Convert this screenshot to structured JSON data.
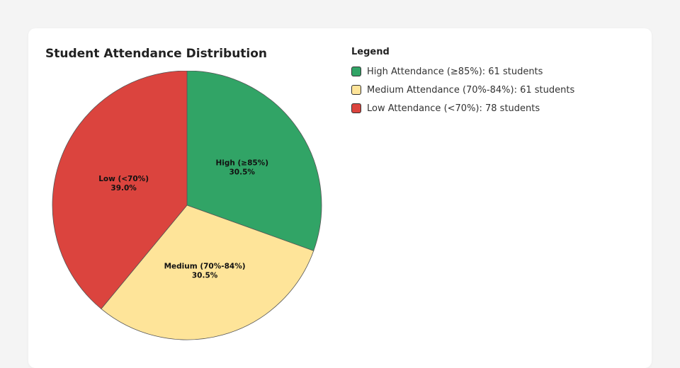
{
  "chart_data": {
    "type": "pie",
    "title": "Student Attendance Distribution",
    "slices": [
      {
        "label": "High (≥85%)",
        "percent_label": "30.5%",
        "value": 61,
        "color": "#31a466"
      },
      {
        "label": "Medium (70%-84%)",
        "percent_label": "30.5%",
        "value": 61,
        "color": "#fee499"
      },
      {
        "label": "Low (<70%)",
        "percent_label": "39.0%",
        "value": 78,
        "color": "#db443e"
      }
    ],
    "legend": {
      "title": "Legend",
      "placement": "right",
      "items": [
        {
          "text": "High Attendance (≥85%): 61 students",
          "color": "#31a466"
        },
        {
          "text": "Medium Attendance (70%-84%): 61 students",
          "color": "#fee499"
        },
        {
          "text": "Low Attendance (<70%): 78 students",
          "color": "#db443e"
        }
      ]
    }
  }
}
